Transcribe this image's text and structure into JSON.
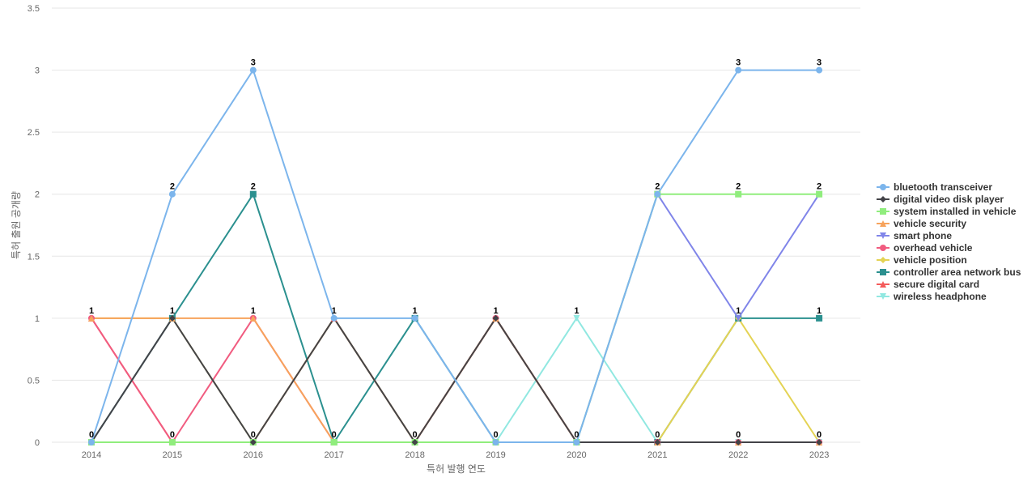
{
  "chart_data": {
    "type": "line",
    "title": "",
    "xlabel": "특허 발행 연도",
    "ylabel": "특허 출원 공개량",
    "ylim": [
      0,
      3.5
    ],
    "yticks": [
      "0",
      "0.5",
      "1",
      "1.5",
      "2",
      "2.5",
      "3",
      "3.5"
    ],
    "categories": [
      "2014",
      "2015",
      "2016",
      "2017",
      "2018",
      "2019",
      "2020",
      "2021",
      "2022",
      "2023"
    ],
    "legend_position": "right",
    "grid": true,
    "series": [
      {
        "name": "bluetooth transceiver",
        "color": "#7cb5ec",
        "marker": "circle",
        "values": [
          0,
          2,
          3,
          1,
          1,
          0,
          0,
          2,
          3,
          3
        ]
      },
      {
        "name": "digital video disk player",
        "color": "#434348",
        "marker": "diamond",
        "values": [
          0,
          1,
          0,
          1,
          0,
          1,
          0,
          0,
          0,
          0
        ]
      },
      {
        "name": "system installed in vehicle",
        "color": "#90ed7d",
        "marker": "square",
        "values": [
          0,
          0,
          0,
          0,
          0,
          0,
          0,
          2,
          2,
          2
        ]
      },
      {
        "name": "vehicle security",
        "color": "#f7a35c",
        "marker": "triangle",
        "values": [
          1,
          1,
          1,
          0,
          0,
          1,
          0,
          0,
          0,
          0
        ]
      },
      {
        "name": "smart phone",
        "color": "#8085e9",
        "marker": "triangle-down",
        "values": [
          0,
          0,
          0,
          0,
          0,
          0,
          0,
          2,
          1,
          2
        ]
      },
      {
        "name": "overhead vehicle",
        "color": "#f15c80",
        "marker": "circle",
        "values": [
          1,
          0,
          1,
          0,
          0,
          1,
          0,
          0,
          0,
          0
        ]
      },
      {
        "name": "vehicle position",
        "color": "#e4d354",
        "marker": "diamond",
        "values": [
          1,
          1,
          0,
          1,
          0,
          1,
          0,
          0,
          1,
          0
        ]
      },
      {
        "name": "controller area network bus",
        "color": "#2b908f",
        "marker": "square",
        "values": [
          0,
          1,
          2,
          0,
          1,
          0,
          0,
          0,
          1,
          1
        ]
      },
      {
        "name": "secure digital card",
        "color": "#f45b5b",
        "marker": "triangle",
        "values": [
          1,
          0,
          0,
          1,
          0,
          1,
          0,
          0,
          0,
          0
        ]
      },
      {
        "name": "wireless headphone",
        "color": "#91e8e1",
        "marker": "triangle-down",
        "values": [
          0,
          0,
          0,
          0,
          0,
          0,
          1,
          0,
          0,
          0
        ]
      }
    ],
    "data_labels": [
      {
        "x": "2014",
        "top": "1",
        "bottom": "0"
      },
      {
        "x": "2015",
        "top": "2",
        "mid": "1",
        "bottom": "0"
      },
      {
        "x": "2016",
        "top": "3",
        "mid2": "2",
        "mid": "1",
        "bottom": "0"
      },
      {
        "x": "2017",
        "mid": "1",
        "bottom": "0"
      },
      {
        "x": "2018",
        "mid": "1",
        "bottom": "0"
      },
      {
        "x": "2019",
        "mid": "1",
        "bottom": "0"
      },
      {
        "x": "2020",
        "mid": "1",
        "bottom": "0"
      },
      {
        "x": "2021",
        "mid2": "2",
        "bottom": "0"
      },
      {
        "x": "2022",
        "top": "3",
        "mid2": "2",
        "mid": "1",
        "bottom": "0"
      },
      {
        "x": "2023",
        "top": "3",
        "mid2": "2",
        "mid": "1",
        "bottom": "0"
      }
    ]
  }
}
